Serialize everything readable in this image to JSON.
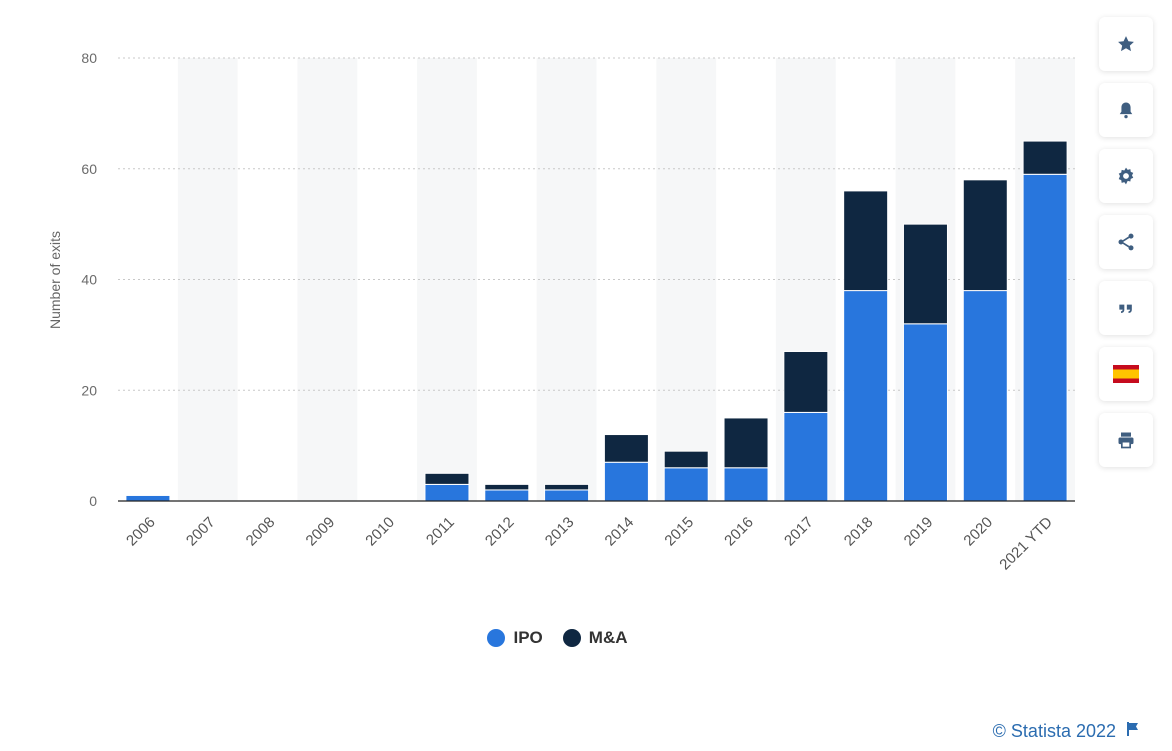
{
  "chart_data": {
    "type": "bar",
    "stacked": true,
    "categories": [
      "2006",
      "2007",
      "2008",
      "2009",
      "2010",
      "2011",
      "2012",
      "2013",
      "2014",
      "2015",
      "2016",
      "2017",
      "2018",
      "2019",
      "2020",
      "2021 YTD"
    ],
    "series": [
      {
        "name": "IPO",
        "color": "#2876dd",
        "values": [
          1,
          0,
          0,
          0,
          0,
          3,
          2,
          2,
          7,
          6,
          6,
          16,
          38,
          32,
          38,
          59
        ]
      },
      {
        "name": "M&A",
        "color": "#0f2741",
        "values": [
          0,
          0,
          0,
          0,
          0,
          2,
          1,
          1,
          5,
          3,
          9,
          11,
          18,
          18,
          20,
          6
        ]
      }
    ],
    "ylabel": "Number of exits",
    "xlabel": "",
    "ylim": [
      0,
      80
    ],
    "yticks": [
      "0",
      "20",
      "40",
      "60",
      "80"
    ],
    "grid": true,
    "legend_position": "bottom"
  },
  "legend": {
    "items": [
      {
        "label": "IPO",
        "color": "#2876dd"
      },
      {
        "label": "M&A",
        "color": "#0f2741"
      }
    ]
  },
  "toolbar": {
    "buttons": [
      {
        "icon": "star-icon"
      },
      {
        "icon": "bell-icon"
      },
      {
        "icon": "gear-icon"
      },
      {
        "icon": "share-icon"
      },
      {
        "icon": "quote-icon"
      },
      {
        "icon": "spain-flag-icon"
      },
      {
        "icon": "print-icon"
      }
    ]
  },
  "footer": {
    "credit": "© Statista 2022"
  }
}
